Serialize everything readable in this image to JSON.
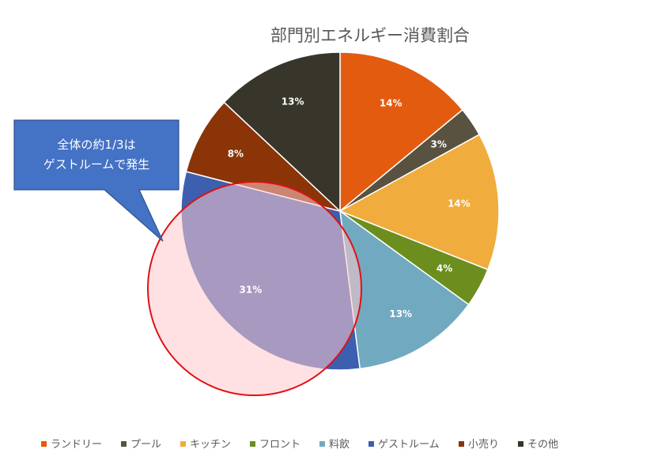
{
  "chart_data": {
    "type": "pie",
    "title": "部門別エネルギー消費割合",
    "categories": [
      "ランドリー",
      "プール",
      "キッチン",
      "フロント",
      "料飲",
      "ゲストルーム",
      "小売り",
      "その他"
    ],
    "values": [
      14,
      3,
      14,
      4,
      13,
      31,
      8,
      13
    ],
    "labels": [
      "14%",
      "3%",
      "14%",
      "4%",
      "13%",
      "31%",
      "8%",
      "13%"
    ],
    "colors": [
      "#e35b0f",
      "#595240",
      "#f0ac3c",
      "#6b8e1f",
      "#71a9c0",
      "#3d5fb0",
      "#8a3408",
      "#38352a"
    ],
    "legend_position": "bottom",
    "annotation": {
      "lines": [
        "全体の約1/3は",
        "ゲストルームで発生"
      ],
      "box_color": "#4472c4",
      "highlight_color": "#e01010"
    }
  }
}
